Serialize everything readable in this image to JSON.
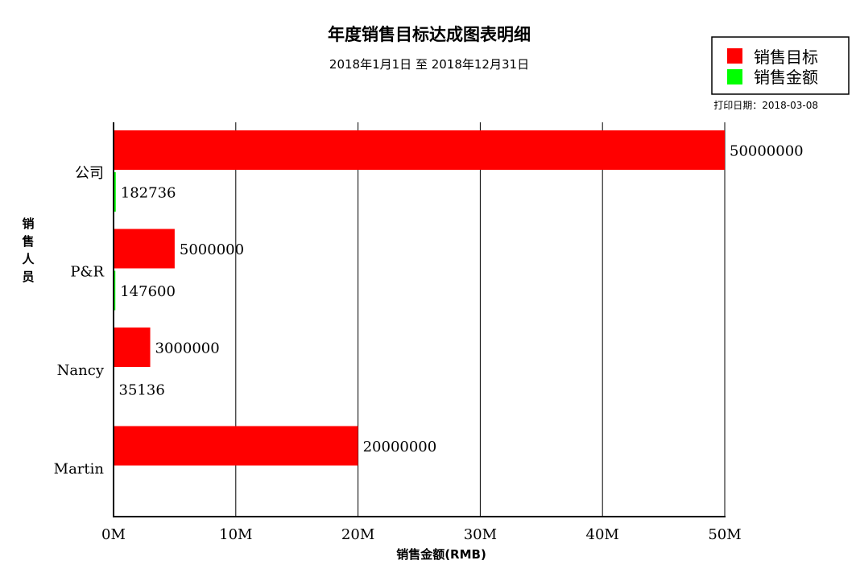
{
  "chart_data": {
    "type": "bar",
    "orientation": "horizontal",
    "title": "年度销售目标达成图表明细",
    "subtitle": "2018年1月1日 至 2018年12月31日",
    "print_date": "打印日期：2018-03-08",
    "xlabel": "销售金额(RMB)",
    "ylabel": "销售人员",
    "xlim": [
      0,
      50000000
    ],
    "xticks": [
      0,
      10000000,
      20000000,
      30000000,
      40000000,
      50000000
    ],
    "xtick_labels": [
      "0M",
      "10M",
      "20M",
      "30M",
      "40M",
      "50M"
    ],
    "categories": [
      "公司",
      "P&R",
      "Nancy",
      "Martin"
    ],
    "series": [
      {
        "name": "销售目标",
        "color": "#ff0000",
        "values": [
          50000000,
          5000000,
          3000000,
          20000000
        ],
        "labels": [
          "50000000",
          "5000000",
          "3000000",
          "20000000"
        ]
      },
      {
        "name": "销售金额",
        "color": "#00ff00",
        "values": [
          182736,
          147600,
          35136,
          0
        ],
        "labels": [
          "182736",
          "147600",
          "35136",
          ""
        ]
      }
    ],
    "grid": true,
    "legend_position": "top-right"
  }
}
